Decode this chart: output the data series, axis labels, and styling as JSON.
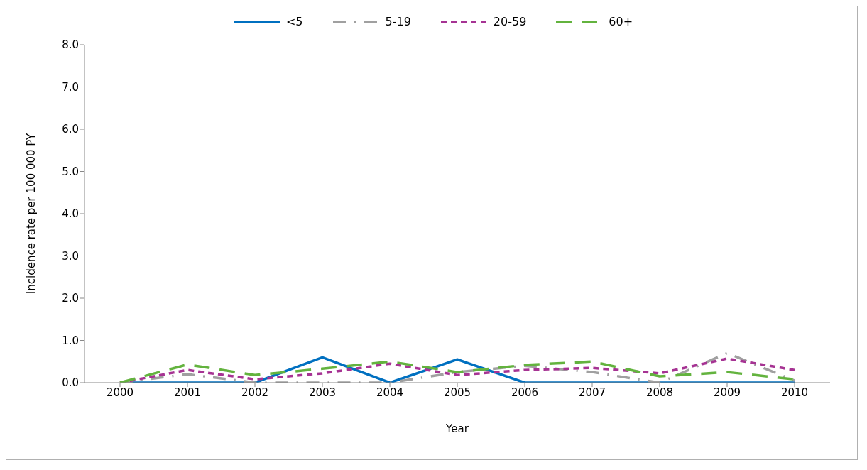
{
  "chart_data": {
    "type": "line",
    "xlabel": "Year",
    "ylabel": "Incidence rate per 100 000 PY",
    "categories": [
      "2000",
      "2001",
      "2002",
      "2003",
      "2004",
      "2005",
      "2006",
      "2007",
      "2008",
      "2009",
      "2010"
    ],
    "ylim": [
      0,
      8
    ],
    "yticks": [
      {
        "value": 0,
        "label": "0.0"
      },
      {
        "value": 1,
        "label": "1.0"
      },
      {
        "value": 2,
        "label": "2.0"
      },
      {
        "value": 3,
        "label": "3.0"
      },
      {
        "value": 4,
        "label": "4.0"
      },
      {
        "value": 5,
        "label": "5.0"
      },
      {
        "value": 6,
        "label": "6.0"
      },
      {
        "value": 7,
        "label": "7.0"
      },
      {
        "value": 8,
        "label": "8.0"
      }
    ],
    "grid": false,
    "legend": "top",
    "marker": "none",
    "series": [
      {
        "name": "<5",
        "color": "#0070c0",
        "line_style": "solid",
        "values": [
          0,
          0,
          0,
          0.6,
          0,
          0.55,
          0,
          0,
          0,
          0,
          0
        ]
      },
      {
        "name": "5-19",
        "color": "#a0a0a0",
        "line_style": "dashdot",
        "values": [
          0,
          0.2,
          0,
          0,
          0,
          0.25,
          0.4,
          0.25,
          0,
          0.7,
          0.05
        ]
      },
      {
        "name": "20-59",
        "color": "#a63393",
        "line_style": "dashed",
        "values": [
          0,
          0.3,
          0.08,
          0.22,
          0.45,
          0.18,
          0.3,
          0.35,
          0.22,
          0.57,
          0.3
        ]
      },
      {
        "name": "60+",
        "color": "#63b33e",
        "line_style": "longdash",
        "values": [
          0,
          0.43,
          0.18,
          0.33,
          0.5,
          0.25,
          0.42,
          0.5,
          0.15,
          0.25,
          0.08
        ]
      }
    ]
  }
}
